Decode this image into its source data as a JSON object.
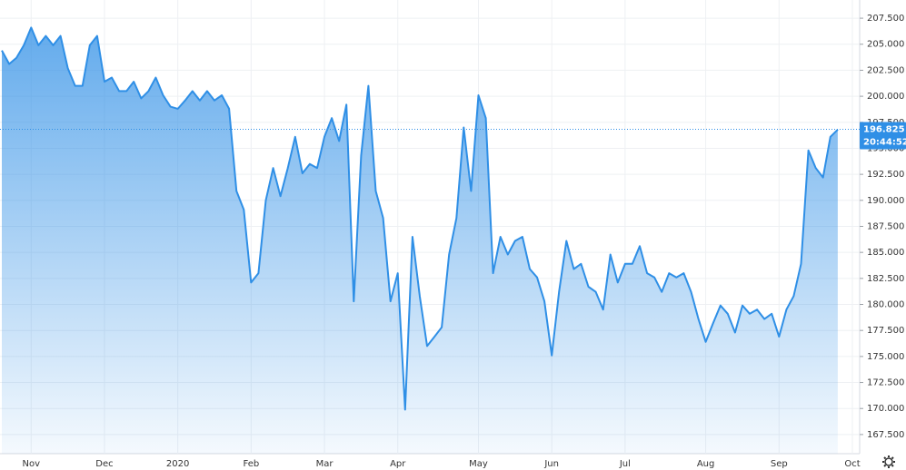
{
  "chart_data": {
    "type": "area",
    "color": "#2f8fe6",
    "grid": true,
    "categories": [
      null,
      null,
      null,
      null,
      "Nov",
      null,
      null,
      null,
      null,
      null,
      null,
      null,
      null,
      null,
      "Dec",
      null,
      null,
      null,
      null,
      null,
      null,
      null,
      null,
      null,
      "2020",
      null,
      null,
      null,
      null,
      null,
      null,
      null,
      null,
      null,
      "Feb",
      null,
      null,
      null,
      null,
      null,
      null,
      null,
      null,
      null,
      "Mar",
      null,
      null,
      null,
      null,
      null,
      null,
      null,
      null,
      null,
      "Apr",
      null,
      null,
      null,
      null,
      null,
      null,
      null,
      null,
      null,
      null,
      "May",
      null,
      null,
      null,
      null,
      null,
      null,
      null,
      null,
      null,
      "Jun",
      null,
      null,
      null,
      null,
      null,
      null,
      null,
      null,
      null,
      "Jul",
      null,
      null,
      null,
      null,
      null,
      null,
      null,
      null,
      null,
      null,
      "Aug",
      null,
      null,
      null,
      null,
      null,
      null,
      null,
      null,
      null,
      "Sep",
      null,
      null,
      null,
      null,
      null,
      null,
      null,
      null,
      null,
      "Oct"
    ],
    "values": [
      204.4,
      203.1,
      203.7,
      204.9,
      206.6,
      204.9,
      205.8,
      204.9,
      205.8,
      202.7,
      201.0,
      201.0,
      204.9,
      205.8,
      201.4,
      201.8,
      200.5,
      200.5,
      201.4,
      199.8,
      200.5,
      201.8,
      200.1,
      199.0,
      198.8,
      199.6,
      200.5,
      199.6,
      200.5,
      199.6,
      200.1,
      198.8,
      190.9,
      189.1,
      182.1,
      183.0,
      190.0,
      193.1,
      190.4,
      193.1,
      196.1,
      192.6,
      193.5,
      193.1,
      196.1,
      197.9,
      195.7,
      199.2,
      180.3,
      194.3,
      201.0,
      190.9,
      188.3,
      180.3,
      183.0,
      169.9,
      186.5,
      180.8,
      176.0,
      176.9,
      177.8,
      184.8,
      188.3,
      197.0,
      190.9,
      200.1,
      197.9,
      183.0,
      186.5,
      184.8,
      186.1,
      186.5,
      183.4,
      182.6,
      180.3,
      175.1,
      181.2,
      186.1,
      183.4,
      183.9,
      181.7,
      181.2,
      179.5,
      184.8,
      182.1,
      183.9,
      183.9,
      185.6,
      183.0,
      182.6,
      181.2,
      183.0,
      182.6,
      183.0,
      181.2,
      178.6,
      176.4,
      178.2,
      179.9,
      179.1,
      177.3,
      179.9,
      179.1,
      179.5,
      178.6,
      179.1,
      176.9,
      179.5,
      180.8,
      183.9,
      194.8,
      193.1,
      192.2,
      196.1,
      196.8,
      null,
      null
    ],
    "ylim": [
      165.66,
      209.25
    ],
    "yticks": [
      {
        "value": 167.5,
        "label": "167.500"
      },
      {
        "value": 170,
        "label": "170.000"
      },
      {
        "value": 172.5,
        "label": "172.500"
      },
      {
        "value": 175,
        "label": "175.000"
      },
      {
        "value": 177.5,
        "label": "177.500"
      },
      {
        "value": 180,
        "label": "180.000"
      },
      {
        "value": 182.5,
        "label": "182.500"
      },
      {
        "value": 185,
        "label": "185.000"
      },
      {
        "value": 187.5,
        "label": "187.500"
      },
      {
        "value": 190,
        "label": "190.000"
      },
      {
        "value": 192.5,
        "label": "192.500"
      },
      {
        "value": 195,
        "label": "195.000"
      },
      {
        "value": 197.5,
        "label": "197.500"
      },
      {
        "value": 200,
        "label": "200.000"
      },
      {
        "value": 202.5,
        "label": "202.500"
      },
      {
        "value": 205,
        "label": "205.000"
      },
      {
        "value": 207.5,
        "label": "207.500"
      }
    ],
    "last_value": 196.825,
    "last_time": "20:44:52"
  }
}
